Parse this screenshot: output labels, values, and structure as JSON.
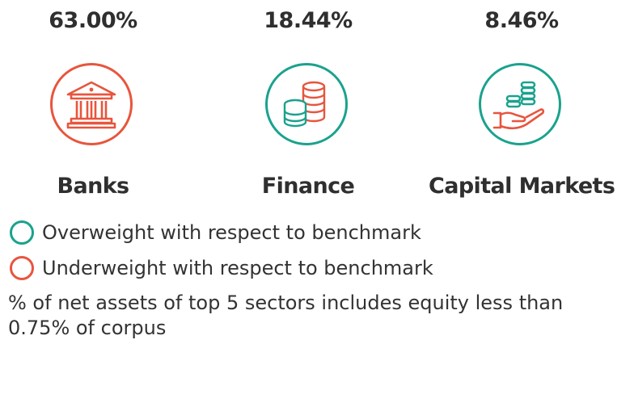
{
  "sectors": [
    {
      "percent": "63.00%",
      "name": "Banks",
      "icon": "bank-building-icon",
      "status": "underweight"
    },
    {
      "percent": "18.44%",
      "name": "Finance",
      "icon": "coin-stacks-icon",
      "status": "overweight"
    },
    {
      "percent": "8.46%",
      "name": "Capital Markets",
      "icon": "hand-with-coins-icon",
      "status": "overweight"
    }
  ],
  "legend": {
    "overweight": "Overweight with respect to benchmark",
    "underweight": "Underweight with respect to benchmark"
  },
  "note": "% of net assets of top 5 sectors includes equity less than 0.75% of corpus",
  "colors": {
    "overweight": "#1aa28d",
    "underweight": "#e8553d",
    "text": "#333333"
  }
}
